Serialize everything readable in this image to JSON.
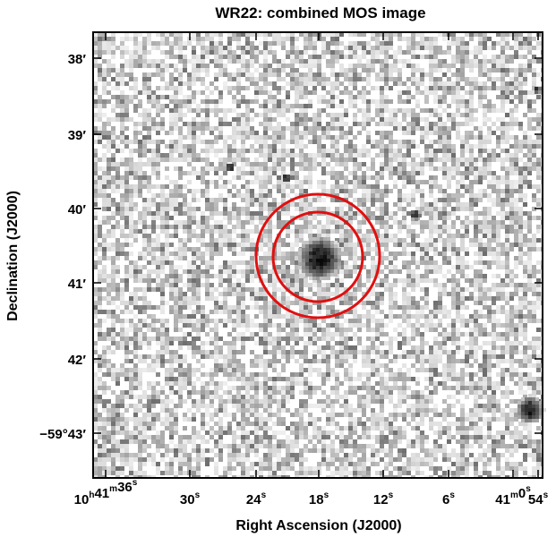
{
  "figure": {
    "title": "WR22: combined MOS image",
    "xlabel": "Right Ascension (J2000)",
    "ylabel": "Declination (J2000)"
  },
  "x_ticks": [
    {
      "parts": [
        [
          "10",
          "h"
        ],
        [
          "41",
          "m"
        ],
        [
          "36",
          "s"
        ]
      ]
    },
    {
      "parts": [
        [
          "30",
          "s"
        ]
      ]
    },
    {
      "parts": [
        [
          "24",
          "s"
        ]
      ]
    },
    {
      "parts": [
        [
          "18",
          "s"
        ]
      ]
    },
    {
      "parts": [
        [
          "12",
          "s"
        ]
      ]
    },
    {
      "parts": [
        [
          "6",
          "s"
        ]
      ]
    },
    {
      "parts": [
        [
          "41",
          "m"
        ],
        [
          "0",
          "s"
        ]
      ]
    },
    {
      "parts": [
        [
          "54",
          "s"
        ]
      ]
    }
  ],
  "y_ticks": [
    {
      "label": "38′"
    },
    {
      "label": "39′"
    },
    {
      "label": "40′"
    },
    {
      "label": "41′"
    },
    {
      "label": "42′"
    },
    {
      "label": "−59°43′"
    }
  ],
  "image": {
    "colormap": "inverted grayscale",
    "sources": [
      {
        "name": "WR22",
        "ra": "10h41m17.5s",
        "dec": "−59°40′37″",
        "brightness": "bright"
      },
      {
        "name": "source",
        "ra": "10h40m55s",
        "dec": "−59°42′53″",
        "brightness": "bright"
      }
    ],
    "region_circles": [
      {
        "color": "#e01010",
        "role": "inner source extraction circle"
      },
      {
        "color": "#e01010",
        "role": "outer background annulus"
      }
    ]
  }
}
